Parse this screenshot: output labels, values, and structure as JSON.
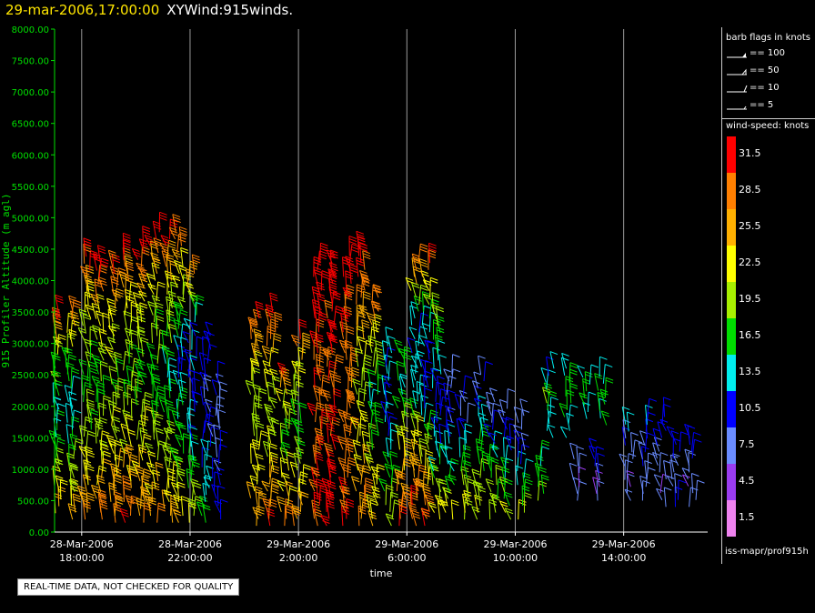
{
  "header": {
    "date_time": "29-mar-2006,17:00:00",
    "title": "XYWind:915winds."
  },
  "chart_data": {
    "type": "scatter",
    "subtype": "wind-barb time-height plot",
    "title": "29-mar-2006,17:00:00  XYWind:915winds.",
    "ylabel": "915 Profiler Altitude (m agl)",
    "xlabel": "time",
    "ylim": [
      0,
      8000
    ],
    "y_ticks": [
      "0.00",
      "500.00",
      "1000.00",
      "1500.00",
      "2000.00",
      "2500.00",
      "3000.00",
      "3500.00",
      "4000.00",
      "4500.00",
      "5000.00",
      "5500.00",
      "6000.00",
      "6500.00",
      "7000.00",
      "7500.00",
      "8000.00"
    ],
    "x_ticks": [
      {
        "date": "28-Mar-2006",
        "time": "18:00:00"
      },
      {
        "date": "28-Mar-2006",
        "time": "22:00:00"
      },
      {
        "date": "29-Mar-2006",
        "time": "2:00:00"
      },
      {
        "date": "29-Mar-2006",
        "time": "6:00:00"
      },
      {
        "date": "29-Mar-2006",
        "time": "10:00:00"
      },
      {
        "date": "29-Mar-2006",
        "time": "14:00:00"
      }
    ],
    "x_range_hours_from_18z": [
      -1.0,
      23.1
    ],
    "grid": "vertical lines at x ticks",
    "barb_flags_heading": "barb flags in knots",
    "barb_flags": [
      "== 100",
      "== 50",
      "== 10",
      "== 5"
    ],
    "color_legend_heading": "wind-speed: knots",
    "color_legend": [
      {
        "label": "31.5",
        "color": "#ff0000"
      },
      {
        "label": "28.5",
        "color": "#ff7f00"
      },
      {
        "label": "25.5",
        "color": "#ffb000"
      },
      {
        "label": "22.5",
        "color": "#ffff00"
      },
      {
        "label": "19.5",
        "color": "#a8f000"
      },
      {
        "label": "16.5",
        "color": "#00dd00"
      },
      {
        "label": "13.5",
        "color": "#00eeee"
      },
      {
        "label": "10.5",
        "color": "#0000ff"
      },
      {
        "label": "7.5",
        "color": "#6a8cff"
      },
      {
        "label": "4.5",
        "color": "#9a3cf0"
      },
      {
        "label": "1.5",
        "color": "#ee82ee"
      }
    ],
    "barb_columns": [
      {
        "t_hours": -0.9,
        "base_m": 300,
        "top_m": 3500,
        "speed_profile_knots": [
          24,
          18,
          13,
          20,
          32
        ]
      },
      {
        "t_hours": -0.4,
        "base_m": 200,
        "top_m": 3600,
        "speed_profile_knots": [
          25,
          19,
          13,
          18,
          31
        ]
      },
      {
        "t_hours": 0.2,
        "base_m": 200,
        "top_m": 4400,
        "speed_profile_knots": [
          27,
          20,
          16,
          21,
          32
        ]
      },
      {
        "t_hours": 0.7,
        "base_m": 200,
        "top_m": 4300,
        "speed_profile_knots": [
          28,
          21,
          17,
          22,
          32
        ]
      },
      {
        "t_hours": 1.2,
        "base_m": 150,
        "top_m": 4300,
        "speed_profile_knots": [
          29,
          22,
          18,
          22,
          32
        ]
      },
      {
        "t_hours": 1.7,
        "base_m": 150,
        "top_m": 4500,
        "speed_profile_knots": [
          29,
          22,
          18,
          21,
          32
        ]
      },
      {
        "t_hours": 2.2,
        "base_m": 150,
        "top_m": 4600,
        "speed_profile_knots": [
          28,
          22,
          17,
          22,
          32
        ]
      },
      {
        "t_hours": 2.7,
        "base_m": 150,
        "top_m": 4800,
        "speed_profile_knots": [
          27,
          21,
          16,
          21,
          32
        ]
      },
      {
        "t_hours": 3.2,
        "base_m": 150,
        "top_m": 4700,
        "speed_profile_knots": [
          25,
          19,
          14,
          20,
          31
        ]
      },
      {
        "t_hours": 3.6,
        "base_m": 150,
        "top_m": 4800,
        "speed_profile_knots": [
          23,
          17,
          12,
          18,
          31
        ]
      },
      {
        "t_hours": 4.1,
        "base_m": 150,
        "top_m": 4200,
        "speed_profile_knots": [
          21,
          15,
          10,
          12,
          30
        ]
      },
      {
        "t_hours": 4.6,
        "base_m": 150,
        "top_m": 3200,
        "speed_profile_knots": [
          16,
          13,
          9,
          9,
          12
        ]
      },
      {
        "t_hours": 5.0,
        "base_m": 200,
        "top_m": 2500,
        "speed_profile_knots": [
          12,
          10,
          8,
          8,
          9
        ]
      },
      {
        "t_hours": 6.4,
        "base_m": 100,
        "top_m": 3500,
        "speed_profile_knots": [
          28,
          22,
          18,
          24,
          32
        ]
      },
      {
        "t_hours": 7.0,
        "base_m": 100,
        "top_m": 3600,
        "speed_profile_knots": [
          29,
          23,
          19,
          25,
          32
        ]
      },
      {
        "t_hours": 7.5,
        "base_m": 100,
        "top_m": 2600,
        "speed_profile_knots": [
          28,
          22,
          18,
          22,
          32
        ]
      },
      {
        "t_hours": 8.0,
        "base_m": 100,
        "top_m": 3100,
        "speed_profile_knots": [
          27,
          21,
          16,
          20,
          31
        ]
      },
      {
        "t_hours": 8.7,
        "base_m": 100,
        "top_m": 4300,
        "speed_profile_knots": [
          31,
          30,
          29,
          31,
          32
        ]
      },
      {
        "t_hours": 9.2,
        "base_m": 100,
        "top_m": 4300,
        "speed_profile_knots": [
          31,
          30,
          30,
          31,
          32
        ]
      },
      {
        "t_hours": 9.8,
        "base_m": 100,
        "top_m": 4400,
        "speed_profile_knots": [
          30,
          29,
          28,
          30,
          32
        ]
      },
      {
        "t_hours": 10.3,
        "base_m": 100,
        "top_m": 4500,
        "speed_profile_knots": [
          28,
          24,
          20,
          26,
          32
        ]
      },
      {
        "t_hours": 10.8,
        "base_m": 100,
        "top_m": 3800,
        "speed_profile_knots": [
          24,
          20,
          15,
          20,
          30
        ]
      },
      {
        "t_hours": 11.3,
        "base_m": 100,
        "top_m": 3000,
        "speed_profile_knots": [
          22,
          17,
          12,
          11,
          14
        ]
      },
      {
        "t_hours": 11.8,
        "base_m": 100,
        "top_m": 2900,
        "speed_profile_knots": [
          30,
          26,
          20,
          14,
          18
        ]
      },
      {
        "t_hours": 12.3,
        "base_m": 100,
        "top_m": 4300,
        "speed_profile_knots": [
          31,
          24,
          14,
          11,
          30
        ]
      },
      {
        "t_hours": 12.7,
        "base_m": 100,
        "top_m": 4300,
        "speed_profile_knots": [
          30,
          20,
          11,
          14,
          29
        ]
      },
      {
        "t_hours": 13.1,
        "base_m": 200,
        "top_m": 3600,
        "speed_profile_knots": [
          24,
          14,
          10,
          14,
          22
        ]
      },
      {
        "t_hours": 13.6,
        "base_m": 200,
        "top_m": 2600,
        "speed_profile_knots": [
          22,
          16,
          12,
          9,
          8
        ]
      },
      {
        "t_hours": 14.1,
        "base_m": 200,
        "top_m": 2200,
        "speed_profile_knots": [
          22,
          19,
          14,
          10,
          8
        ]
      },
      {
        "t_hours": 14.7,
        "base_m": 200,
        "top_m": 2600,
        "speed_profile_knots": [
          21,
          18,
          15,
          10,
          8
        ]
      },
      {
        "t_hours": 15.2,
        "base_m": 200,
        "top_m": 2100,
        "speed_profile_knots": [
          20,
          18,
          14,
          9,
          7
        ]
      },
      {
        "t_hours": 15.7,
        "base_m": 200,
        "top_m": 2000,
        "speed_profile_knots": [
          21,
          17,
          13,
          9,
          7
        ]
      },
      {
        "t_hours": 16.2,
        "base_m": 200,
        "top_m": 1900,
        "speed_profile_knots": [
          20,
          17,
          12,
          8,
          7
        ]
      },
      {
        "t_hours": 17.3,
        "base_m": 1500,
        "top_m": 2600,
        "speed_profile_knots": [
          13,
          15,
          18,
          14,
          12
        ]
      },
      {
        "t_hours": 17.9,
        "base_m": 1500,
        "top_m": 2700,
        "speed_profile_knots": [
          14,
          16,
          18,
          14,
          12
        ]
      },
      {
        "t_hours": 18.6,
        "base_m": 1800,
        "top_m": 2500,
        "speed_profile_knots": [
          15,
          16,
          17,
          14,
          13
        ]
      },
      {
        "t_hours": 19.2,
        "base_m": 1700,
        "top_m": 2500,
        "speed_profile_knots": [
          14,
          16,
          17,
          15,
          13
        ]
      },
      {
        "t_hours": 16.9,
        "base_m": 500,
        "top_m": 1200,
        "speed_profile_knots": [
          19,
          18,
          17,
          16,
          15
        ]
      },
      {
        "t_hours": 18.3,
        "base_m": 500,
        "top_m": 1200,
        "speed_profile_knots": [
          6,
          5,
          7,
          8,
          9
        ]
      },
      {
        "t_hours": 19.0,
        "base_m": 500,
        "top_m": 1300,
        "speed_profile_knots": [
          7,
          6,
          8,
          9,
          9
        ]
      },
      {
        "t_hours": 20.2,
        "base_m": 500,
        "top_m": 1800,
        "speed_profile_knots": [
          7,
          6,
          9,
          10,
          12
        ]
      },
      {
        "t_hours": 20.8,
        "base_m": 500,
        "top_m": 1900,
        "speed_profile_knots": [
          8,
          7,
          9,
          11,
          12
        ]
      },
      {
        "t_hours": 21.4,
        "base_m": 400,
        "top_m": 1900,
        "speed_profile_knots": [
          8,
          6,
          8,
          10,
          11
        ]
      },
      {
        "t_hours": 21.9,
        "base_m": 400,
        "top_m": 1500,
        "speed_profile_knots": [
          9,
          7,
          8,
          10,
          10
        ]
      },
      {
        "t_hours": 22.5,
        "base_m": 400,
        "top_m": 1500,
        "speed_profile_knots": [
          8,
          6,
          7,
          9,
          9
        ]
      }
    ]
  },
  "footer": {
    "source": "iss-mapr/prof915h",
    "disclaimer": "REAL-TIME DATA, NOT CHECKED FOR QUALITY"
  }
}
